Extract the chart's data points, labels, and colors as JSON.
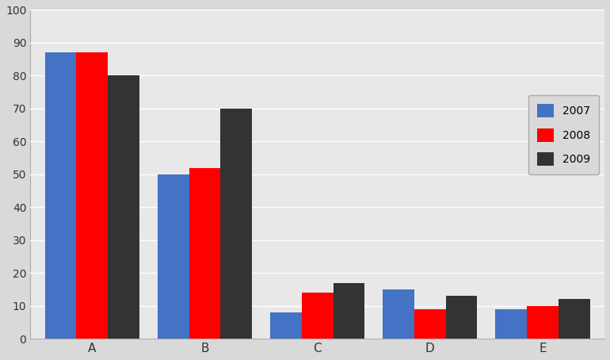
{
  "categories": [
    "A",
    "B",
    "C",
    "D",
    "E"
  ],
  "series": {
    "2007": [
      87,
      50,
      8,
      15,
      9
    ],
    "2008": [
      87,
      52,
      14,
      9,
      10
    ],
    "2009": [
      80,
      70,
      17,
      13,
      12
    ]
  },
  "series_labels": [
    "2007",
    "2008",
    "2009"
  ],
  "colors": {
    "2007": "#4472C4",
    "2008": "#FF0000",
    "2009": "#333333"
  },
  "ylim": [
    0,
    100
  ],
  "yticks": [
    0,
    10,
    20,
    30,
    40,
    50,
    60,
    70,
    80,
    90,
    100
  ],
  "legend_loc": "center right",
  "plot_bg_color": "#E8E8E8",
  "fig_bg_color": "#D9D9D9",
  "bar_width": 0.28,
  "grid_color": "#FFFFFF",
  "spine_color": "#AAAAAA"
}
